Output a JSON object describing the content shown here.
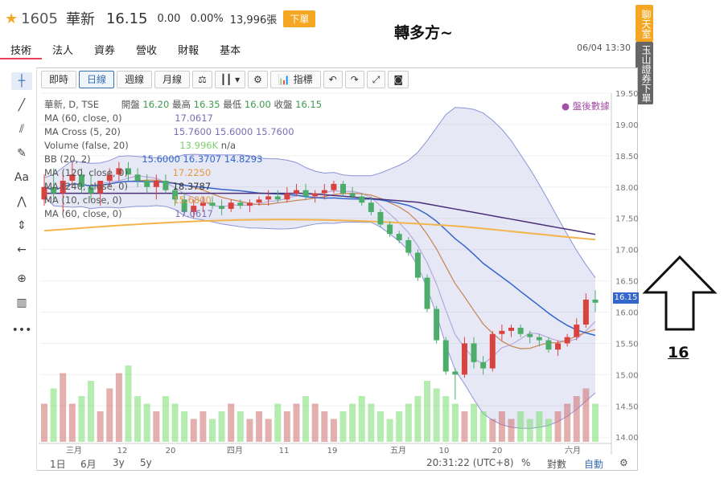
{
  "header": {
    "code": "1605",
    "name": "華新",
    "price": "16.15",
    "change": "0.00",
    "change_pct": "0.00%",
    "volume": "13,996張",
    "order_button": "下單",
    "datetime": "06/04 13:30"
  },
  "annotation": {
    "title": "轉多方~",
    "number": "16"
  },
  "side_buttons": {
    "chat": "聊天室",
    "order": "玉山證券下單"
  },
  "tabs": [
    "技術",
    "法人",
    "資券",
    "營收",
    "財報",
    "基本"
  ],
  "toolbar": {
    "intraday": "即時",
    "daily": "日線",
    "weekly": "週線",
    "monthly": "月線",
    "indicators": "指標"
  },
  "legend": {
    "main": "華新, D, TSE",
    "open_label": "開盤",
    "open": "16.20",
    "high_label": "最高",
    "high": "16.35",
    "low_label": "最低",
    "low": "16.00",
    "close_label": "收盤",
    "close": "16.15",
    "ma60": "MA (60, close, 0)",
    "ma60_val": "17.0617",
    "macross": "MA Cross (5, 20)",
    "macross_vals": [
      "15.7600",
      "15.6000",
      "15.7600"
    ],
    "volume": "Volume (false, 20)",
    "volume_vals": [
      "13.996K",
      "n/a"
    ],
    "bb": "BB (20, 2)",
    "bb_vals": [
      "15.6000",
      "16.3707",
      "14.8293"
    ],
    "ma120": "MA (120, close, 0)",
    "ma120_val": "17.2250",
    "ma240": "MA (240, close, 0)",
    "ma240_val": "18.3787",
    "ma10": "MA (10, close, 0)",
    "ma10_val": "15.6800",
    "ma60b": "MA (60, close, 0)",
    "ma60b_val": "17.0617"
  },
  "after_hours": "● 盤後數據",
  "current_price_tag": "16.15",
  "chart_data": {
    "type": "candlestick",
    "y_ticks": [
      "19.50",
      "19.00",
      "18.50",
      "18.00",
      "17.50",
      "17.00",
      "16.50",
      "16.00",
      "15.50",
      "15.00",
      "14.50",
      "14.00"
    ],
    "ylim": [
      13.9,
      19.5
    ],
    "x_ticks": [
      "三月",
      "12",
      "20",
      "四月",
      "11",
      "19",
      "五月",
      "10",
      "20",
      "六月"
    ],
    "candles": [
      [
        17.8,
        18.2,
        17.7,
        18.0
      ],
      [
        18.0,
        18.3,
        17.8,
        17.9
      ],
      [
        17.9,
        18.2,
        17.6,
        18.1
      ],
      [
        18.1,
        18.4,
        18.0,
        18.2
      ],
      [
        18.2,
        18.3,
        17.9,
        18.0
      ],
      [
        18.0,
        18.2,
        17.8,
        17.9
      ],
      [
        17.9,
        18.1,
        17.7,
        18.1
      ],
      [
        18.1,
        18.3,
        18.0,
        18.2
      ],
      [
        18.2,
        18.4,
        18.1,
        18.3
      ],
      [
        18.3,
        18.4,
        18.1,
        18.2
      ],
      [
        18.2,
        18.3,
        18.0,
        18.1
      ],
      [
        18.1,
        18.2,
        17.9,
        18.0
      ],
      [
        18.0,
        18.2,
        17.8,
        18.1
      ],
      [
        18.1,
        18.2,
        17.9,
        17.95
      ],
      [
        17.95,
        18.0,
        17.7,
        17.8
      ],
      [
        17.8,
        17.9,
        17.55,
        17.6
      ],
      [
        17.6,
        17.8,
        17.5,
        17.7
      ],
      [
        17.7,
        17.85,
        17.6,
        17.75
      ],
      [
        17.75,
        17.85,
        17.65,
        17.7
      ],
      [
        17.7,
        17.8,
        17.55,
        17.65
      ],
      [
        17.65,
        17.8,
        17.6,
        17.75
      ],
      [
        17.75,
        17.8,
        17.65,
        17.7
      ],
      [
        17.7,
        17.8,
        17.6,
        17.75
      ],
      [
        17.75,
        17.85,
        17.7,
        17.8
      ],
      [
        17.8,
        17.95,
        17.7,
        17.85
      ],
      [
        17.85,
        17.95,
        17.75,
        17.8
      ],
      [
        17.8,
        18.0,
        17.75,
        17.9
      ],
      [
        17.9,
        18.05,
        17.85,
        17.95
      ],
      [
        17.95,
        18.05,
        17.8,
        17.85
      ],
      [
        17.85,
        17.95,
        17.75,
        17.9
      ],
      [
        17.9,
        18.05,
        17.8,
        17.95
      ],
      [
        17.95,
        18.1,
        17.9,
        18.05
      ],
      [
        18.05,
        18.1,
        17.85,
        17.9
      ],
      [
        17.9,
        18.0,
        17.8,
        17.85
      ],
      [
        17.85,
        17.9,
        17.7,
        17.75
      ],
      [
        17.75,
        17.85,
        17.55,
        17.6
      ],
      [
        17.6,
        17.65,
        17.35,
        17.4
      ],
      [
        17.4,
        17.45,
        17.2,
        17.25
      ],
      [
        17.25,
        17.3,
        17.1,
        17.15
      ],
      [
        17.15,
        17.2,
        16.9,
        16.95
      ],
      [
        16.95,
        17.0,
        16.5,
        16.55
      ],
      [
        16.55,
        16.6,
        16.0,
        16.05
      ],
      [
        16.05,
        16.1,
        15.5,
        15.55
      ],
      [
        15.55,
        15.6,
        15.0,
        15.05
      ],
      [
        15.05,
        15.1,
        14.6,
        15.0
      ],
      [
        15.0,
        15.6,
        14.95,
        15.5
      ],
      [
        15.5,
        15.6,
        15.1,
        15.2
      ],
      [
        15.2,
        15.3,
        15.0,
        15.1
      ],
      [
        15.1,
        15.7,
        15.05,
        15.65
      ],
      [
        15.65,
        15.8,
        15.55,
        15.7
      ],
      [
        15.7,
        15.8,
        15.6,
        15.75
      ],
      [
        15.75,
        15.8,
        15.6,
        15.65
      ],
      [
        15.65,
        15.7,
        15.5,
        15.6
      ],
      [
        15.6,
        15.65,
        15.45,
        15.55
      ],
      [
        15.55,
        15.6,
        15.35,
        15.4
      ],
      [
        15.4,
        15.55,
        15.3,
        15.5
      ],
      [
        15.5,
        15.65,
        15.45,
        15.6
      ],
      [
        15.6,
        15.9,
        15.55,
        15.8
      ],
      [
        15.8,
        16.3,
        15.75,
        16.2
      ],
      [
        16.2,
        16.35,
        16.0,
        16.15
      ]
    ],
    "volumes": [
      5,
      7,
      9,
      5,
      6,
      8,
      4,
      7,
      9,
      10,
      6,
      5,
      4,
      6,
      5,
      4,
      3,
      4,
      3,
      4,
      5,
      4,
      3,
      4,
      3,
      5,
      4,
      5,
      6,
      5,
      4,
      3,
      4,
      5,
      6,
      5,
      4,
      3,
      4,
      5,
      6,
      8,
      7,
      6,
      5,
      4,
      5,
      4,
      3,
      4,
      3,
      4,
      3,
      4,
      3,
      4,
      5,
      6,
      7,
      5
    ],
    "overlays": [
      "MA5",
      "MA10",
      "MA20",
      "MA60",
      "MA120",
      "BB(20,2)"
    ]
  },
  "bottom": {
    "ranges": [
      "1日",
      "6月",
      "3y",
      "5y"
    ],
    "time": "20:31:22 (UTC+8)",
    "pct": "%",
    "log": "對數",
    "auto": "自動"
  }
}
